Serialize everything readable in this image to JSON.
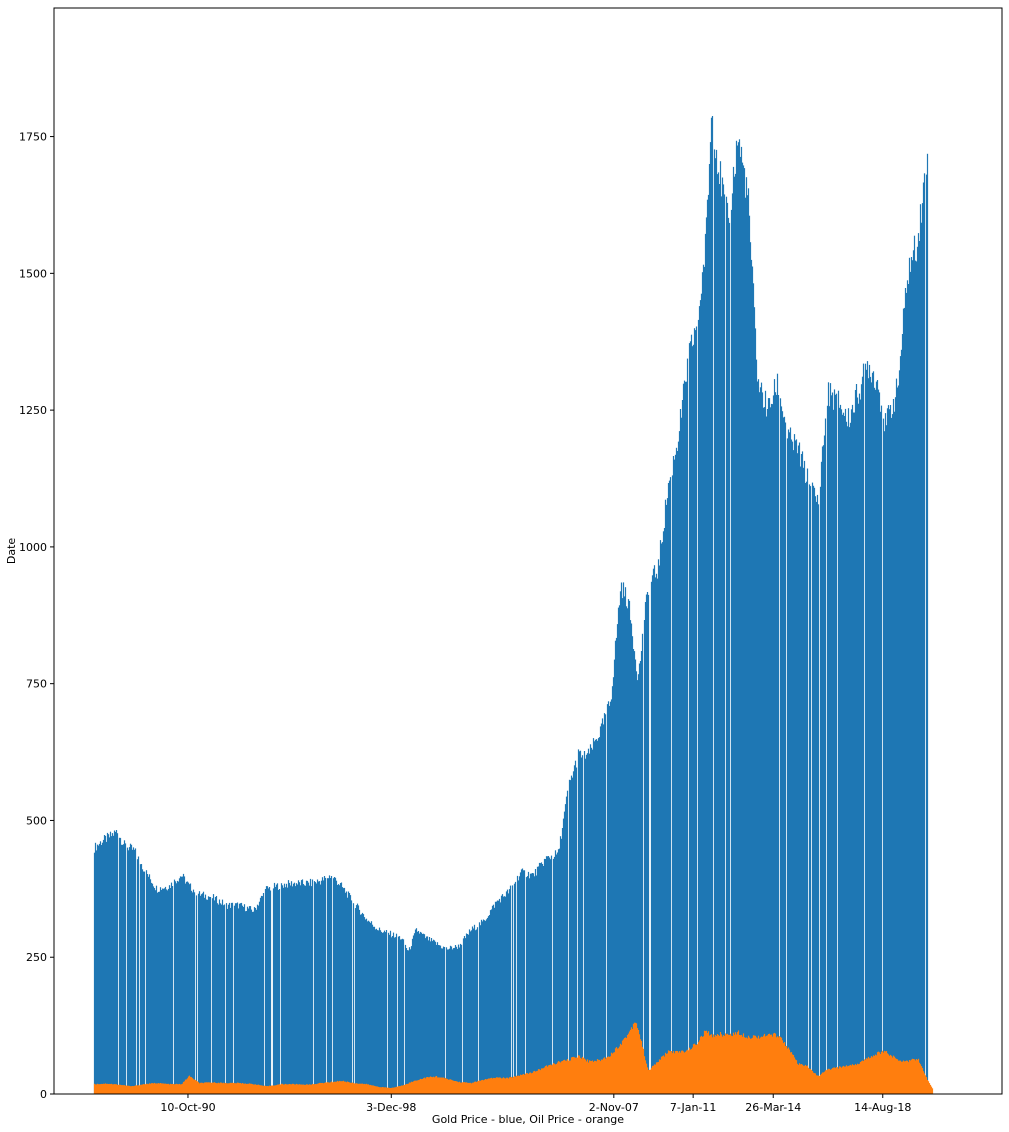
{
  "chart_data": {
    "type": "bar",
    "xlabel": "Gold Price - blue, Oil Price - orange",
    "ylabel": "Date",
    "grid": false,
    "legend": "none",
    "ylim": [
      0,
      1985
    ],
    "yticks": [
      0,
      250,
      500,
      750,
      1000,
      1250,
      1500,
      1750
    ],
    "xlim": [
      1985.4,
      2023.4
    ],
    "xticks": [
      {
        "x": 1990.77,
        "label": "10-Oct-90"
      },
      {
        "x": 1998.92,
        "label": "3-Dec-98"
      },
      {
        "x": 2007.84,
        "label": "2-Nov-07"
      },
      {
        "x": 2011.02,
        "label": "7-Jan-11"
      },
      {
        "x": 2014.23,
        "label": "26-Mar-14"
      },
      {
        "x": 2018.62,
        "label": "14-Aug-18"
      }
    ],
    "series": [
      {
        "name": "Gold Price",
        "color": "#1f77b4",
        "points": [
          [
            1987.0,
            450
          ],
          [
            1987.3,
            462
          ],
          [
            1987.6,
            470
          ],
          [
            1987.9,
            480
          ],
          [
            1988.2,
            455
          ],
          [
            1988.6,
            445
          ],
          [
            1989.0,
            410
          ],
          [
            1989.5,
            375
          ],
          [
            1990.0,
            380
          ],
          [
            1990.5,
            400
          ],
          [
            1990.8,
            380
          ],
          [
            1991.2,
            365
          ],
          [
            1991.7,
            360
          ],
          [
            1992.3,
            345
          ],
          [
            1992.8,
            345
          ],
          [
            1993.4,
            335
          ],
          [
            1993.9,
            375
          ],
          [
            1994.5,
            382
          ],
          [
            1995.0,
            385
          ],
          [
            1995.6,
            385
          ],
          [
            1996.1,
            390
          ],
          [
            1996.5,
            400
          ],
          [
            1996.9,
            380
          ],
          [
            1997.4,
            350
          ],
          [
            1997.9,
            320
          ],
          [
            1998.4,
            300
          ],
          [
            1998.9,
            292
          ],
          [
            1999.3,
            285
          ],
          [
            1999.6,
            260
          ],
          [
            1999.9,
            300
          ],
          [
            2000.3,
            285
          ],
          [
            2000.7,
            275
          ],
          [
            2001.1,
            265
          ],
          [
            2001.6,
            270
          ],
          [
            2002.1,
            300
          ],
          [
            2002.6,
            315
          ],
          [
            2003.1,
            350
          ],
          [
            2003.6,
            370
          ],
          [
            2004.1,
            405
          ],
          [
            2004.6,
            400
          ],
          [
            2005.1,
            430
          ],
          [
            2005.6,
            440
          ],
          [
            2006.0,
            560
          ],
          [
            2006.4,
            620
          ],
          [
            2006.8,
            620
          ],
          [
            2007.3,
            665
          ],
          [
            2007.7,
            720
          ],
          [
            2008.1,
            930
          ],
          [
            2008.4,
            900
          ],
          [
            2008.8,
            760
          ],
          [
            2009.2,
            930
          ],
          [
            2009.6,
            960
          ],
          [
            2010.0,
            1110
          ],
          [
            2010.4,
            1200
          ],
          [
            2010.8,
            1340
          ],
          [
            2011.2,
            1420
          ],
          [
            2011.5,
            1550
          ],
          [
            2011.75,
            1800
          ],
          [
            2012.0,
            1700
          ],
          [
            2012.4,
            1590
          ],
          [
            2012.8,
            1750
          ],
          [
            2013.2,
            1640
          ],
          [
            2013.6,
            1300
          ],
          [
            2014.0,
            1250
          ],
          [
            2014.4,
            1300
          ],
          [
            2014.8,
            1200
          ],
          [
            2015.2,
            1180
          ],
          [
            2015.6,
            1120
          ],
          [
            2016.0,
            1080
          ],
          [
            2016.4,
            1280
          ],
          [
            2016.8,
            1270
          ],
          [
            2017.2,
            1230
          ],
          [
            2017.6,
            1280
          ],
          [
            2018.0,
            1335
          ],
          [
            2018.4,
            1300
          ],
          [
            2018.7,
            1220
          ],
          [
            2019.2,
            1290
          ],
          [
            2019.6,
            1500
          ],
          [
            2020.0,
            1560
          ],
          [
            2020.4,
            1720
          ]
        ]
      },
      {
        "name": "Oil Price",
        "color": "#ff7f0e",
        "points": [
          [
            1987.0,
            18
          ],
          [
            1987.5,
            19
          ],
          [
            1988.0,
            17
          ],
          [
            1988.5,
            14
          ],
          [
            1989.0,
            18
          ],
          [
            1989.5,
            20
          ],
          [
            1990.0,
            18
          ],
          [
            1990.5,
            18
          ],
          [
            1990.8,
            33
          ],
          [
            1991.2,
            20
          ],
          [
            1991.7,
            21
          ],
          [
            1992.3,
            20
          ],
          [
            1992.8,
            20
          ],
          [
            1993.4,
            18
          ],
          [
            1993.9,
            14
          ],
          [
            1994.5,
            18
          ],
          [
            1995.0,
            18
          ],
          [
            1995.6,
            17
          ],
          [
            1996.1,
            20
          ],
          [
            1996.5,
            22
          ],
          [
            1996.9,
            24
          ],
          [
            1997.4,
            20
          ],
          [
            1997.9,
            18
          ],
          [
            1998.4,
            13
          ],
          [
            1998.9,
            11
          ],
          [
            1999.3,
            15
          ],
          [
            1999.6,
            20
          ],
          [
            1999.9,
            25
          ],
          [
            2000.3,
            30
          ],
          [
            2000.7,
            32
          ],
          [
            2001.1,
            28
          ],
          [
            2001.6,
            22
          ],
          [
            2002.1,
            20
          ],
          [
            2002.6,
            26
          ],
          [
            2003.1,
            30
          ],
          [
            2003.6,
            29
          ],
          [
            2004.1,
            35
          ],
          [
            2004.6,
            40
          ],
          [
            2005.1,
            50
          ],
          [
            2005.6,
            58
          ],
          [
            2006.0,
            62
          ],
          [
            2006.4,
            70
          ],
          [
            2006.8,
            60
          ],
          [
            2007.3,
            62
          ],
          [
            2007.7,
            72
          ],
          [
            2008.1,
            92
          ],
          [
            2008.4,
            110
          ],
          [
            2008.7,
            135
          ],
          [
            2008.9,
            100
          ],
          [
            2009.2,
            42
          ],
          [
            2009.6,
            60
          ],
          [
            2010.0,
            78
          ],
          [
            2010.4,
            76
          ],
          [
            2010.8,
            80
          ],
          [
            2011.2,
            95
          ],
          [
            2011.5,
            115
          ],
          [
            2011.75,
            105
          ],
          [
            2012.0,
            110
          ],
          [
            2012.4,
            108
          ],
          [
            2012.8,
            112
          ],
          [
            2013.2,
            105
          ],
          [
            2013.6,
            105
          ],
          [
            2014.0,
            107
          ],
          [
            2014.4,
            108
          ],
          [
            2014.8,
            85
          ],
          [
            2015.2,
            55
          ],
          [
            2015.6,
            50
          ],
          [
            2016.0,
            32
          ],
          [
            2016.4,
            45
          ],
          [
            2016.8,
            48
          ],
          [
            2017.2,
            52
          ],
          [
            2017.6,
            55
          ],
          [
            2018.0,
            65
          ],
          [
            2018.4,
            75
          ],
          [
            2018.7,
            78
          ],
          [
            2019.2,
            62
          ],
          [
            2019.6,
            60
          ],
          [
            2020.0,
            65
          ],
          [
            2020.4,
            25
          ],
          [
            2020.6,
            10
          ]
        ]
      }
    ]
  }
}
